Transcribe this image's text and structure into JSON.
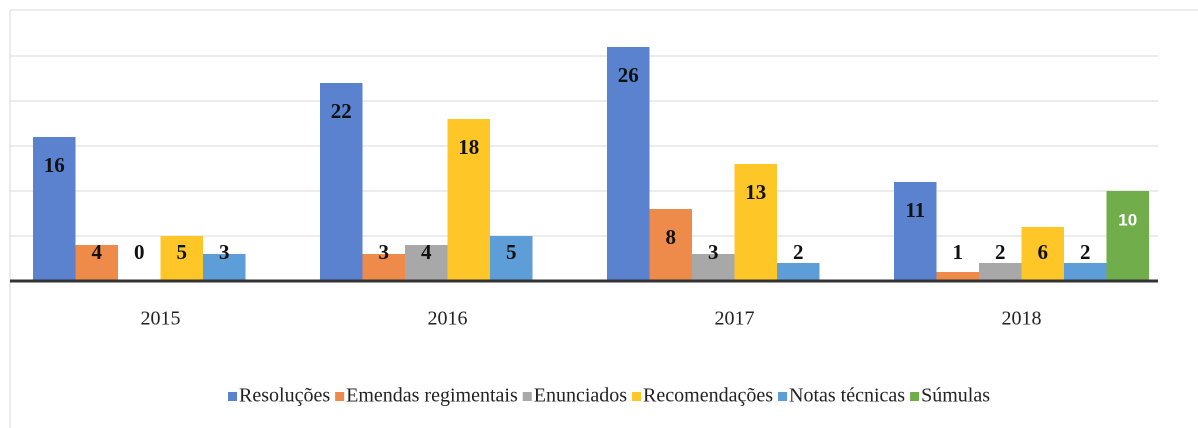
{
  "chart_data": {
    "type": "bar",
    "categories": [
      "2015",
      "2016",
      "2017",
      "2018"
    ],
    "series": [
      {
        "name": "Resoluções",
        "color": "#5a82cf",
        "values": [
          16,
          22,
          26,
          11
        ]
      },
      {
        "name": "Emendas regimentais",
        "color": "#ee8b4b",
        "values": [
          4,
          3,
          8,
          1
        ]
      },
      {
        "name": "Enunciados",
        "color": "#a8a8a8",
        "values": [
          0,
          4,
          3,
          2
        ]
      },
      {
        "name": "Recomendações",
        "color": "#ffc627",
        "values": [
          5,
          18,
          13,
          6
        ]
      },
      {
        "name": "Notas técnicas",
        "color": "#5d9ed8",
        "values": [
          3,
          5,
          2,
          2
        ]
      },
      {
        "name": "Súmulas",
        "color": "#72ad4c",
        "values": [
          null,
          null,
          null,
          10
        ]
      }
    ],
    "ylim": [
      0,
      30
    ],
    "yticks": [
      0,
      5,
      10,
      15,
      20,
      25,
      30
    ],
    "grid": true,
    "legend": "bottom"
  }
}
